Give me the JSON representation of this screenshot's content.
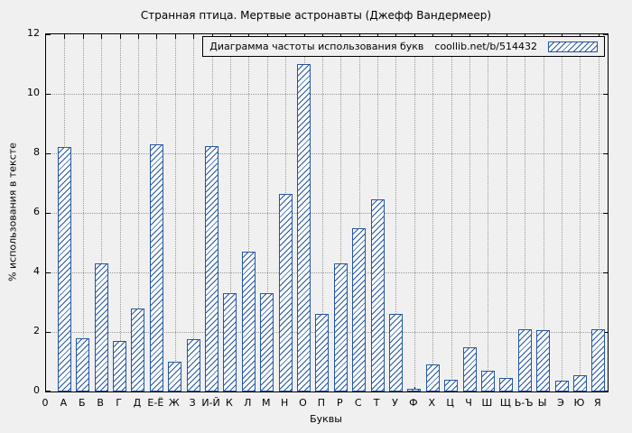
{
  "title": "Странная птица. Мертвые астронавты (Джефф Вандермеер)",
  "legend": {
    "label": "Диаграмма частоты использования букв",
    "source": "coollib.net/b/514432"
  },
  "axes": {
    "xlabel": "Буквы",
    "ylabel": "% использования в тексте",
    "origin_label": "0"
  },
  "colors": {
    "bar": "#2456a4",
    "background": "#f0f0f0"
  },
  "chart_data": {
    "type": "bar",
    "title": "Странная птица. Мертвые астронавты (Джефф Вандермеер)",
    "xlabel": "Буквы",
    "ylabel": "% использования в тексте",
    "ylim": [
      0,
      12
    ],
    "yticks": [
      0,
      2,
      4,
      6,
      8,
      10,
      12
    ],
    "grid": true,
    "legend": "Диаграмма частоты использования букв coollib.net/b/514432",
    "legend_position": "top-right",
    "categories": [
      "А",
      "Б",
      "В",
      "Г",
      "Д",
      "Е-Ё",
      "Ж",
      "З",
      "И-Й",
      "К",
      "Л",
      "М",
      "Н",
      "О",
      "П",
      "Р",
      "С",
      "Т",
      "У",
      "Ф",
      "Х",
      "Ц",
      "Ч",
      "Ш",
      "Щ",
      "Ь-Ъ",
      "Ы",
      "Э",
      "Ю",
      "Я"
    ],
    "values": [
      8.2,
      1.8,
      4.3,
      1.7,
      2.8,
      8.3,
      1.0,
      1.75,
      8.25,
      3.3,
      4.7,
      3.3,
      6.65,
      11.0,
      2.6,
      4.3,
      5.5,
      6.45,
      2.6,
      0.1,
      0.9,
      0.4,
      1.5,
      0.7,
      0.45,
      2.1,
      2.05,
      0.35,
      0.55,
      2.1
    ]
  }
}
